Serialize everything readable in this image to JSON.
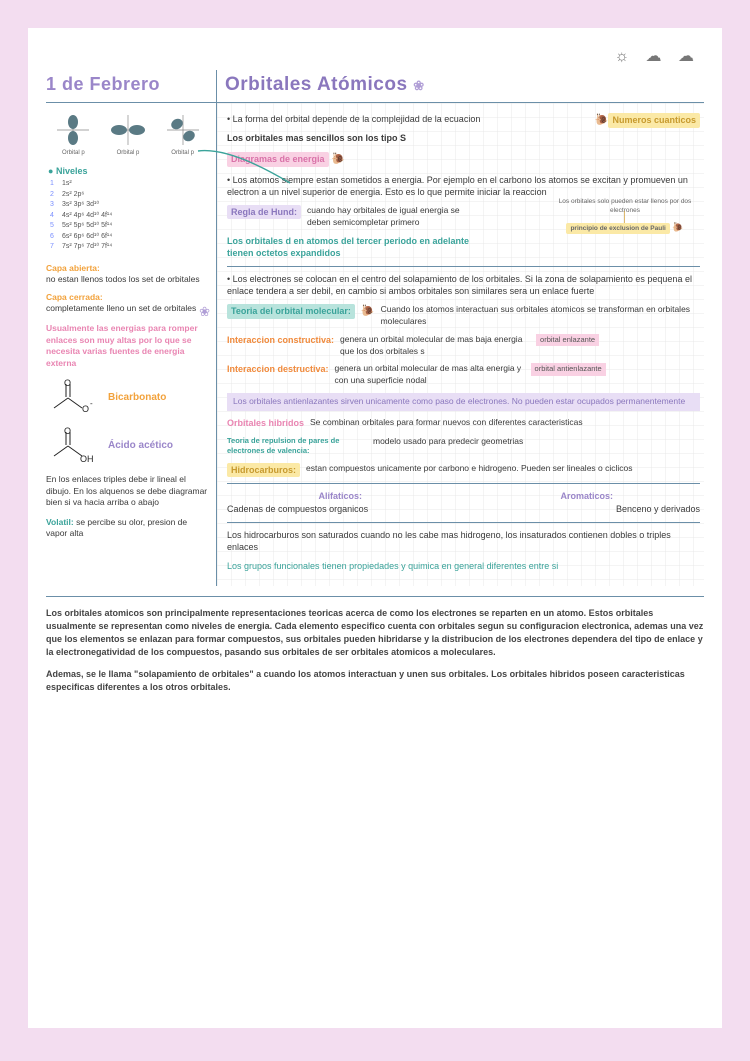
{
  "header": {
    "weather_glyphs": "☼  ☁  ☁",
    "date": "1 de Febrero",
    "title": "Orbitales Atómicos",
    "flower": "❀"
  },
  "sidebar": {
    "orbital_caption": "Orbital p",
    "niveles_title": "Niveles",
    "niveles": [
      {
        "n": "1",
        "cfg": "1s²"
      },
      {
        "n": "2",
        "cfg": "2s²  2p⁶"
      },
      {
        "n": "3",
        "cfg": "3s²  3p⁶  3d¹⁰"
      },
      {
        "n": "4",
        "cfg": "4s²  4p⁶  4d¹⁰  4f¹⁴"
      },
      {
        "n": "5",
        "cfg": "5s²  5p⁶  5d¹⁰  5f¹⁴"
      },
      {
        "n": "6",
        "cfg": "6s²  6p⁶  6d¹⁰  6f¹⁴"
      },
      {
        "n": "7",
        "cfg": "7s²  7p⁶  7d¹⁰  7f¹⁴"
      }
    ],
    "capa_abierta_k": "Capa abierta:",
    "capa_abierta_v": "no estan llenos todos los set de orbitales",
    "capa_cerrada_k": "Capa cerrada:",
    "capa_cerrada_v": "completamente lleno un set de orbitales",
    "pink_note": "Usualmente las energias para romper enlaces son muy altas por lo que se necesita varias fuentes de energia externa",
    "bicarbonato": "Bicarbonato",
    "acido": "Ácido acético",
    "triples": "En los enlaces triples debe ir lineal el dibujo. En los alquenos se debe diagramar bien si va hacia arriba o abajo",
    "volatil_k": "Volatil:",
    "volatil_v": "se percibe su olor, presion de vapor alta"
  },
  "main": {
    "l1": "La forma del orbital depende de la complejidad de la ecuacion",
    "numeros": "Numeros cuanticos",
    "l2": "Los orbitales mas sencillos son los tipo S",
    "diagramas": "Diagramas de energia",
    "l3": "Los atomos siempre estan sometidos a energia. Por ejemplo en el carbono los atomos se excitan y promueven un electron a un nivel superior de energia. Esto es lo que permite iniciar la reaccion",
    "hund_k": "Regla de Hund:",
    "hund_v": "cuando hay orbitales de igual energia se deben semicompletar primero",
    "arrow1": "Los orbitales solo pueden estar llenos por dos electrones",
    "arrow2": "principio de exclusion de Pauli",
    "green1": "Los orbitales d en atomos del tercer periodo en adelante tienen octetos expandidos",
    "l4": "Los electrones se colocan en el centro del solapamiento de los orbitales. Si la zona de solapamiento es pequena el enlace tendera a ser debil, en cambio si ambos orbitales son similares sera un enlace fuerte",
    "teoria_k": "Teoria del orbital molecular:",
    "teoria_v": "Cuando los atomos interactuan sus orbitales atomicos se transforman en orbitales moleculares",
    "constr_k": "Interaccion constructiva:",
    "constr_v": "genera un orbital molecular de mas baja energia que los dos orbitales s",
    "constr_tag": "orbital enlazante",
    "destr_k": "Interaccion destructiva:",
    "destr_v": "genera un orbital molecular de mas alta energia y con una superficie nodal",
    "destr_tag": "orbital antienlazante",
    "purple_strip": "Los orbitales antienlazantes sirven unicamente como paso de electrones. No pueden estar ocupados permanentemente",
    "hibridos_k": "Orbitales hibridos",
    "hibridos_v": "Se combinan orbitales para formar nuevos con diferentes caracteristicas",
    "repulsion_k": "Teoria de repulsion de pares de electrones de valencia:",
    "repulsion_v": "modelo usado para predecir geometrias",
    "hidro_k": "Hidrocarburos:",
    "hidro_v": "estan compuestos unicamente por carbono e hidrogeno. Pueden ser lineales o ciclicos",
    "alif_k": "Alifaticos:",
    "alif_v": "Cadenas de compuestos organicos",
    "arom_k": "Aromaticos:",
    "arom_v": "Benceno y derivados",
    "sat": "Los hidrocarburos son saturados cuando no les cabe mas hidrogeno, los insaturados contienen dobles o triples enlaces",
    "grupos": "Los grupos funcionales tienen propiedades y quimica en general diferentes entre si"
  },
  "footer": {
    "p1": "Los orbitales atomicos son principalmente representaciones teoricas acerca de como los electrones se reparten en un atomo. Estos orbitales usualmente se representan como niveles de energia. Cada elemento especifico cuenta con orbitales segun su configuracion electronica, ademas una vez que los elementos se enlazan para formar compuestos, sus orbitales pueden hibridarse y la distribucion de los electrones dependera del tipo de enlace y la electronegatividad de los compuestos, pasando sus orbitales de ser orbitales atomicos a moleculares.",
    "p2": "Ademas, se le llama \"solapamiento de orbitales\" a cuando los atomos interactuan y unen sus orbitales. Los orbitales hibridos poseen caracteristicas especificas diferentes a los otros orbitales."
  }
}
